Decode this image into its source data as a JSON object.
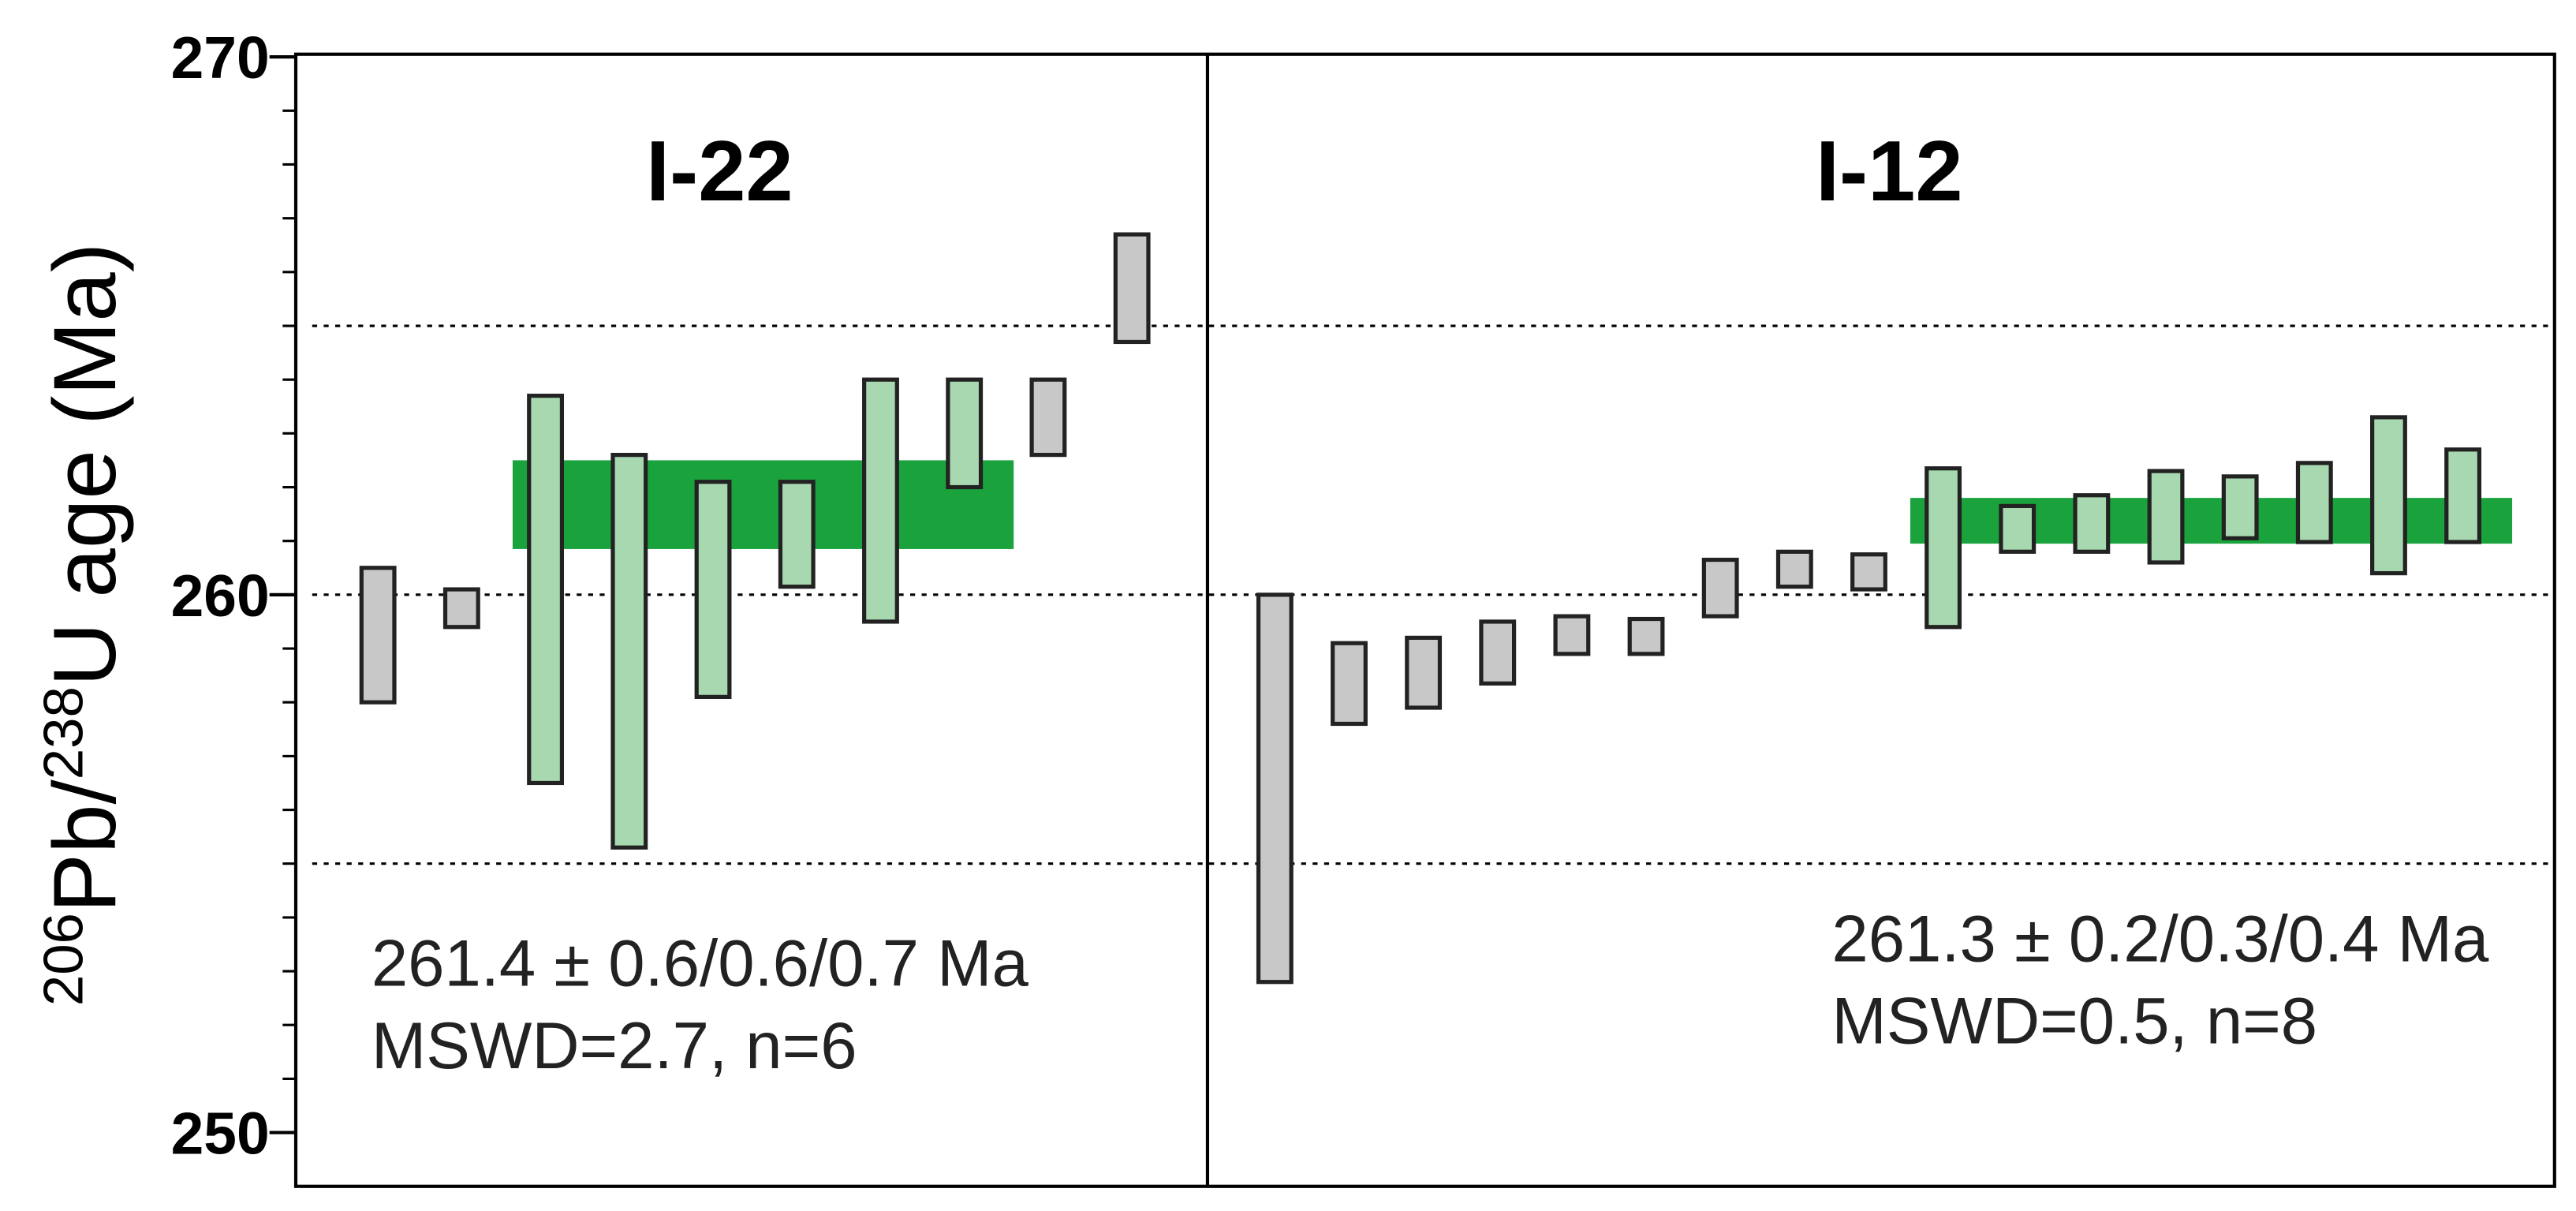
{
  "chart_data": {
    "type": "floating-bar",
    "y_label": {
      "sup1": "206",
      "part1": "Pb/",
      "sup2": "238",
      "part2": "U age (Ma)"
    },
    "ylim": [
      249,
      270.05
    ],
    "yticks": [
      250,
      260,
      270
    ],
    "yticks_minor": [
      251,
      252,
      253,
      254,
      255,
      256,
      257,
      258,
      259,
      261,
      262,
      263,
      264,
      265,
      266,
      267,
      268,
      269
    ],
    "grid_lines": [
      255,
      260,
      265
    ],
    "panels": [
      {
        "title": "I-22",
        "low": [
          258.0,
          259.4,
          256.5,
          255.3,
          258.1,
          260.15,
          259.5,
          262.0,
          262.6,
          264.7
        ],
        "high": [
          260.5,
          260.1,
          263.7,
          262.6,
          262.1,
          262.1,
          264.0,
          264.0,
          264.0,
          266.7
        ],
        "colors": [
          "#c8c8c8",
          "#c8c8c8",
          "#a8d8b0",
          "#a8d8b0",
          "#a8d8b0",
          "#a8d8b0",
          "#a8d8b0",
          "#a8d8b0",
          "#c8c8c8",
          "#c8c8c8"
        ],
        "mean_band": [
          260.85,
          262.5
        ],
        "band_color": "#1aa33c",
        "annotation": [
          "261.4 ± 0.6/0.6/0.7 Ma",
          "MSWD=2.7, n=6"
        ]
      },
      {
        "title": "I-12",
        "low": [
          252.8,
          257.6,
          257.9,
          258.35,
          258.9,
          258.9,
          259.6,
          260.15,
          260.1,
          259.4,
          260.8,
          260.8,
          260.6,
          261.05,
          260.98,
          260.4,
          260.98
        ],
        "high": [
          260.0,
          259.1,
          259.2,
          259.5,
          259.6,
          259.55,
          260.65,
          260.8,
          260.75,
          262.35,
          261.65,
          261.85,
          262.3,
          262.2,
          262.45,
          263.3,
          262.7
        ],
        "colors": [
          "#c8c8c8",
          "#c8c8c8",
          "#c8c8c8",
          "#c8c8c8",
          "#c8c8c8",
          "#c8c8c8",
          "#c8c8c8",
          "#c8c8c8",
          "#c8c8c8",
          "#a8d8b0",
          "#a8d8b0",
          "#a8d8b0",
          "#a8d8b0",
          "#a8d8b0",
          "#a8d8b0",
          "#a8d8b0",
          "#a8d8b0"
        ],
        "mean_band": [
          260.95,
          261.8
        ],
        "band_color": "#1aa33c",
        "annotation": [
          "261.3 ± 0.2/0.3/0.4 Ma",
          "MSWD=0.5, n=8"
        ]
      }
    ]
  }
}
